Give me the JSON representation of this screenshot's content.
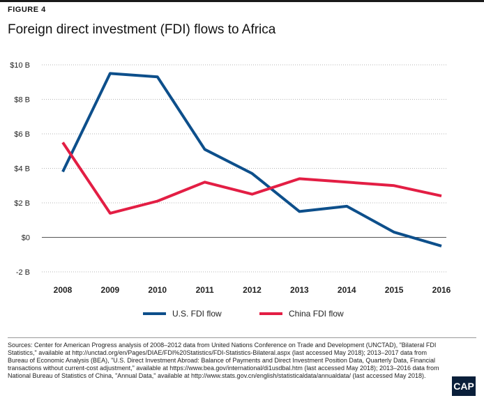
{
  "figure_label": "FIGURE 4",
  "title": "Foreign direct investment (FDI) flows to Africa",
  "chart_data": {
    "type": "line",
    "x": [
      "2008",
      "2009",
      "2010",
      "2011",
      "2012",
      "2013",
      "2014",
      "2015",
      "2016"
    ],
    "series": [
      {
        "name": "U.S. FDI flow",
        "color": "#0d4f8b",
        "values": [
          3.8,
          9.5,
          9.3,
          5.1,
          3.7,
          1.5,
          1.8,
          0.3,
          -0.5
        ]
      },
      {
        "name": "China FDI flow",
        "color": "#e31e44",
        "values": [
          5.5,
          1.4,
          2.1,
          3.2,
          2.5,
          3.4,
          3.2,
          3.0,
          2.4
        ]
      }
    ],
    "ylim": [
      -2,
      10
    ],
    "yticks": [
      -2,
      0,
      2,
      4,
      6,
      8,
      10
    ],
    "ytick_labels": [
      "-2 B",
      "$0",
      "$2 B",
      "$4 B",
      "$6 B",
      "$8 B",
      "$10 B"
    ],
    "xlabel": "",
    "ylabel": "",
    "grid": "horizontal dotted",
    "legend_position": "bottom"
  },
  "sources": "Sources: Center for American Progress analysis of 2008–2012 data from United Nations Conference on Trade and Development (UNCTAD), \"Bilateral FDI Statistics,\" available at http://unctad.org/en/Pages/DIAE/FDI%20Statistics/FDI-Statistics-Bilateral.aspx (last accessed May 2018); 2013–2017 data from Bureau of Economic Analysis (BEA), \"U.S. Direct Investment Abroad: Balance of Payments and Direct Investment Position Data, Quarterly Data, Financial transactions without current-cost adjustment,\" available at https://www.bea.gov/international/di1usdbal.htm (last accessed May 2018); 2013–2016 data from National Bureau of Statistics of China, \"Annual Data,\" available at http://www.stats.gov.cn/english/statisticaldata/annualdata/ (last accessed May 2018).",
  "logo_text": "CAP"
}
